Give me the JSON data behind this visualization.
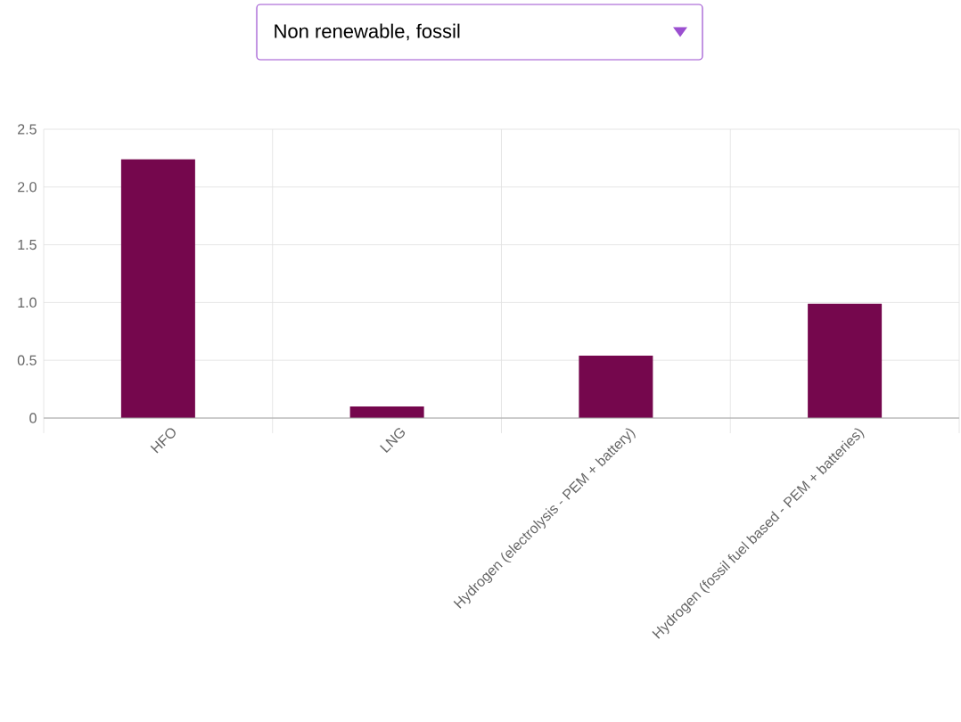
{
  "chart_data": {
    "type": "bar",
    "title": "Non renewable, fossil",
    "categories": [
      "HFO",
      "LNG",
      "Hydrogen (electrolysis - PEM + battery)",
      "Hydrogen (fossil fuel based - PEM + batteries)"
    ],
    "values": [
      2.24,
      0.1,
      0.54,
      0.99
    ],
    "color": "#75074d",
    "ylim": [
      0,
      2.5
    ],
    "yticks": [
      0,
      0.5,
      {
        "value": 1,
        "label": "1.0"
      },
      1.5,
      {
        "value": 2,
        "label": "2.0"
      },
      2.5
    ],
    "grid": true
  }
}
